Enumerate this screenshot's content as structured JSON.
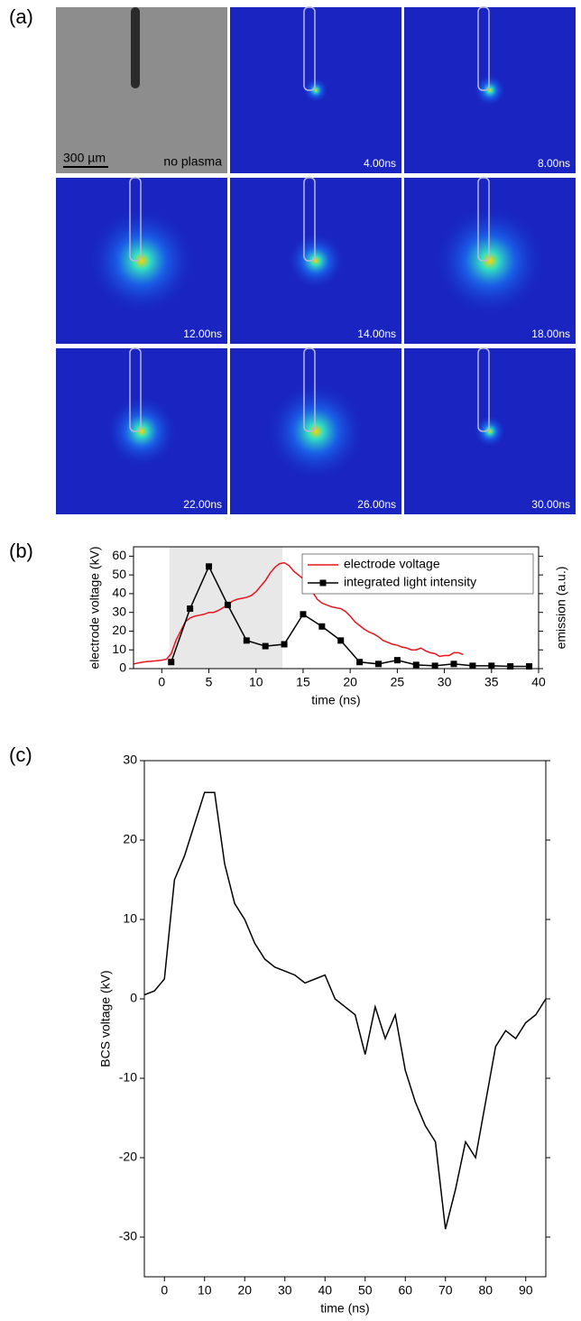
{
  "figure": {
    "panel_label": "(a)",
    "frames": [
      {
        "label": "no plasma",
        "scale_bar": "300 µm"
      },
      {
        "label": "4.00ns"
      },
      {
        "label": "8.00ns"
      },
      {
        "label": "12.00ns"
      },
      {
        "label": "14.00ns"
      },
      {
        "label": "18.00ns"
      },
      {
        "label": "22.00ns"
      },
      {
        "label": "26.00ns"
      },
      {
        "label": "30.00ns"
      }
    ]
  },
  "chart_data": [
    {
      "type": "line",
      "panel_label": "(b)",
      "xlabel": "time (ns)",
      "ylabel": "electrode voltage (kV)",
      "y2label": "emission (a.u.)",
      "xlim": [
        -3,
        40
      ],
      "xticks": [
        0,
        5,
        10,
        15,
        20,
        25,
        30,
        35,
        40
      ],
      "ylim": [
        0,
        65
      ],
      "yticks": [
        0,
        10,
        20,
        30,
        40,
        50,
        60
      ],
      "y2lim": [
        0,
        65
      ],
      "highlight_span": [
        0.8,
        12.8
      ],
      "legend": "upper right",
      "series": [
        {
          "name": "electrode voltage",
          "color": "#e8141c",
          "x": [
            -3,
            -2.5,
            -2,
            -1.5,
            -1,
            -0.5,
            0,
            0.5,
            1,
            1.5,
            2,
            2.5,
            3,
            3.5,
            4,
            4.5,
            5,
            5.5,
            6,
            6.5,
            7,
            7.5,
            8,
            8.5,
            9,
            9.5,
            10,
            10.5,
            11,
            11.5,
            12,
            12.5,
            13,
            13.5,
            14,
            14.5,
            15,
            15.5,
            16,
            16.5,
            17,
            17.5,
            18,
            18.5,
            19,
            19.5,
            20,
            20.5,
            21,
            21.5,
            22,
            22.5,
            23,
            23.5,
            24,
            24.5,
            25,
            25.5,
            26,
            26.5,
            27,
            27.5,
            28,
            28.5,
            29,
            29.5,
            30,
            30.5,
            31,
            31.5,
            32
          ],
          "values": [
            2.5,
            3,
            3.5,
            3.8,
            4,
            4.2,
            4.5,
            5,
            8,
            15,
            20,
            25,
            27,
            28,
            28.5,
            29,
            30,
            30,
            31,
            32.5,
            34,
            36,
            37,
            37.5,
            38,
            39,
            41,
            44,
            47,
            51,
            54,
            56,
            56.5,
            55,
            52,
            50,
            48,
            45,
            41,
            37,
            35,
            34,
            33,
            32.5,
            32,
            30.5,
            28,
            25,
            23,
            21,
            19.5,
            18.5,
            17,
            15,
            14,
            13,
            12.5,
            11.5,
            11,
            10,
            10,
            11,
            9.5,
            8.5,
            8,
            6.5,
            7,
            7,
            8.5,
            8.5,
            7.5
          ]
        },
        {
          "name": "integrated light intensity",
          "color": "#000000",
          "axis": "y2",
          "marker": "square",
          "x": [
            1,
            3,
            5,
            7,
            9,
            11,
            13,
            15,
            17,
            19,
            21,
            23,
            25,
            27,
            29,
            31,
            33,
            35,
            37,
            39
          ],
          "values": [
            3.5,
            32,
            54.5,
            34,
            15,
            12,
            13,
            29,
            22.5,
            15,
            3.5,
            2.5,
            4.5,
            2,
            1.5,
            2.5,
            1.5,
            1.5,
            1.2,
            1.2
          ]
        }
      ]
    },
    {
      "type": "line",
      "panel_label": "(c)",
      "xlabel": "time (ns)",
      "ylabel": "BCS voltage (kV)",
      "xlim": [
        -5,
        95
      ],
      "xticks": [
        0,
        10,
        20,
        30,
        40,
        50,
        60,
        70,
        80,
        90
      ],
      "ylim": [
        -35,
        30
      ],
      "yticks": [
        -30,
        -20,
        -10,
        0,
        10,
        20,
        30
      ],
      "series": [
        {
          "color": "#000000",
          "x": [
            -5,
            -2.5,
            0,
            2.5,
            5,
            7.5,
            10,
            12.5,
            15,
            17.5,
            20,
            22.5,
            25,
            27.5,
            30,
            32.5,
            35,
            37.5,
            40,
            42.5,
            45,
            47.5,
            50,
            52.5,
            55,
            57.5,
            60,
            62.5,
            65,
            67.5,
            70,
            72.5,
            75,
            77.5,
            80,
            82.5,
            85,
            87.5,
            90,
            92.5,
            95
          ],
          "values": [
            0.5,
            1,
            2.5,
            15,
            18,
            22,
            26,
            26,
            17,
            12,
            10,
            7,
            5,
            4,
            3.5,
            3,
            2,
            2.5,
            3,
            0,
            -1,
            -2,
            -7,
            -1,
            -5,
            -2,
            -9,
            -13,
            -16,
            -18,
            -29,
            -24,
            -18,
            -20,
            -13,
            -6,
            -4,
            -5,
            -3,
            -2,
            0
          ]
        }
      ]
    }
  ]
}
